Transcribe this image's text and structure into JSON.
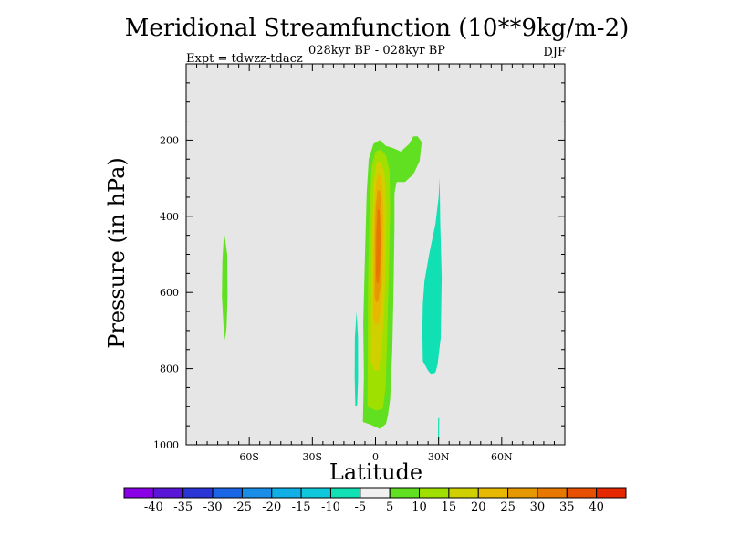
{
  "chart_data": {
    "type": "contour",
    "title": "Meridional Streamfunction (10**9kg/m-2)",
    "subtitle": "028kyr BP - 028kyr BP",
    "experiment": "Expt = tdwzz-tdacz",
    "season": "DJF",
    "xlabel": "Latitude",
    "ylabel": "Pressure (in hPa)",
    "xlim": [
      -90,
      90
    ],
    "ylim": [
      1000,
      0
    ],
    "xticks": [
      {
        "value": -60,
        "label": "60S"
      },
      {
        "value": -30,
        "label": "30S"
      },
      {
        "value": 0,
        "label": "0"
      },
      {
        "value": 30,
        "label": "30N"
      },
      {
        "value": 60,
        "label": "60N"
      }
    ],
    "yticks": [
      {
        "value": 200,
        "label": "200"
      },
      {
        "value": 400,
        "label": "400"
      },
      {
        "value": 600,
        "label": "600"
      },
      {
        "value": 800,
        "label": "800"
      },
      {
        "value": 1000,
        "label": "1000"
      }
    ],
    "background": "#e6e6e6",
    "colorbar": {
      "colors": [
        "#8a00e6",
        "#5a16d6",
        "#2a36d6",
        "#1a66e6",
        "#1a8ee6",
        "#10b0e6",
        "#10c8dc",
        "#10e0b4",
        "#f0f0f0",
        "#60e020",
        "#a0e000",
        "#d0d000",
        "#e6b800",
        "#e69800",
        "#e67800",
        "#e65000",
        "#e62800"
      ],
      "labels": [
        "-40",
        "-35",
        "-30",
        "-25",
        "-20",
        "-15",
        "-10",
        "-5",
        "5",
        "10",
        "15",
        "20",
        "25",
        "30",
        "35",
        "40"
      ]
    },
    "contours": [
      {
        "level": "5 to 10",
        "color": "#60e020",
        "polygons": [
          [
            [
              -6,
              940
            ],
            [
              -5.5,
              820
            ],
            [
              -5.8,
              680
            ],
            [
              -5,
              500
            ],
            [
              -4.2,
              340
            ],
            [
              -3.2,
              250
            ],
            [
              -1,
              210
            ],
            [
              2,
              200
            ],
            [
              5,
              215
            ],
            [
              8,
              220
            ],
            [
              12,
              230
            ],
            [
              16,
              210
            ],
            [
              18,
              190
            ],
            [
              20,
              190
            ],
            [
              22,
              205
            ],
            [
              21,
              255
            ],
            [
              18,
              290
            ],
            [
              14,
              310
            ],
            [
              10,
              310
            ],
            [
              9,
              340
            ],
            [
              9,
              430
            ],
            [
              8.6,
              590
            ],
            [
              8,
              750
            ],
            [
              7,
              880
            ],
            [
              6,
              920
            ],
            [
              5,
              945
            ],
            [
              2,
              958
            ],
            [
              -2,
              948
            ]
          ],
          [
            [
              -72,
              440
            ],
            [
              -70.5,
              500
            ],
            [
              -70.3,
              610
            ],
            [
              -70.8,
              690
            ],
            [
              -71.5,
              725
            ],
            [
              -72.2,
              690
            ],
            [
              -73,
              610
            ],
            [
              -72.8,
              520
            ]
          ]
        ]
      },
      {
        "level": "10 to 15",
        "color": "#a0e000",
        "polygons": [
          [
            [
              -3.8,
              900
            ],
            [
              -3.7,
              740
            ],
            [
              -3.5,
              560
            ],
            [
              -2.8,
              380
            ],
            [
              -1.8,
              270
            ],
            [
              0,
              230
            ],
            [
              2.5,
              225
            ],
            [
              5,
              240
            ],
            [
              6.7,
              280
            ],
            [
              7,
              380
            ],
            [
              6.3,
              560
            ],
            [
              5.5,
              720
            ],
            [
              4.8,
              850
            ],
            [
              3.5,
              905
            ],
            [
              0.5,
              910
            ]
          ]
        ]
      },
      {
        "level": "15 to 20",
        "color": "#d0d000",
        "polygons": [
          [
            [
              -2.2,
              780
            ],
            [
              -2,
              620
            ],
            [
              -1.6,
              460
            ],
            [
              -1,
              320
            ],
            [
              0.5,
              260
            ],
            [
              2.5,
              255
            ],
            [
              4.2,
              285
            ],
            [
              5.2,
              380
            ],
            [
              4.8,
              530
            ],
            [
              4,
              660
            ],
            [
              3,
              750
            ],
            [
              1.5,
              805
            ],
            [
              -0.5,
              805
            ]
          ]
        ]
      },
      {
        "level": "20 to 25",
        "color": "#e6b800",
        "polygons": [
          [
            [
              -1.2,
              665
            ],
            [
              -1,
              520
            ],
            [
              -0.6,
              390
            ],
            [
              0.3,
              310
            ],
            [
              1.8,
              285
            ],
            [
              3.3,
              320
            ],
            [
              3.9,
              410
            ],
            [
              3.5,
              540
            ],
            [
              2.8,
              630
            ],
            [
              1.6,
              680
            ],
            [
              0.1,
              685
            ]
          ]
        ]
      },
      {
        "level": "25 to 30",
        "color": "#e69800",
        "polygons": [
          [
            [
              -0.4,
              610
            ],
            [
              -0.3,
              470
            ],
            [
              0.1,
              375
            ],
            [
              1,
              330
            ],
            [
              2.2,
              335
            ],
            [
              3,
              400
            ],
            [
              2.8,
              520
            ],
            [
              2.2,
              590
            ],
            [
              1.2,
              625
            ],
            [
              0.2,
              625
            ]
          ]
        ]
      },
      {
        "level": "30 to 35",
        "color": "#e67800",
        "polygons": [
          [
            [
              0.2,
              555
            ],
            [
              0.4,
              440
            ],
            [
              1,
              380
            ],
            [
              1.9,
              385
            ],
            [
              2.4,
              460
            ],
            [
              2.1,
              540
            ],
            [
              1.4,
              575
            ],
            [
              0.6,
              575
            ]
          ]
        ]
      },
      {
        "level": "-5 to -10",
        "color": "#10e0b4",
        "polygons": [
          [
            [
              29.8,
              930
            ],
            [
              29.7,
              990
            ],
            [
              30.2,
              990
            ],
            [
              30.3,
              930
            ]
          ],
          [
            [
              30.5,
              300
            ],
            [
              30.8,
              420
            ],
            [
              31.5,
              560
            ],
            [
              31,
              720
            ],
            [
              29.5,
              790
            ],
            [
              28.5,
              810
            ],
            [
              26.5,
              815
            ],
            [
              25,
              805
            ],
            [
              22.5,
              780
            ],
            [
              22.3,
              700
            ],
            [
              22.5,
              630
            ],
            [
              23.3,
              570
            ],
            [
              25.5,
              500
            ],
            [
              28.5,
              420
            ],
            [
              30,
              350
            ]
          ],
          [
            [
              -9,
              650
            ],
            [
              -8.3,
              720
            ],
            [
              -8.3,
              830
            ],
            [
              -8.7,
              895
            ],
            [
              -9.6,
              900
            ],
            [
              -9.9,
              820
            ],
            [
              -9.8,
              720
            ]
          ]
        ]
      }
    ]
  }
}
